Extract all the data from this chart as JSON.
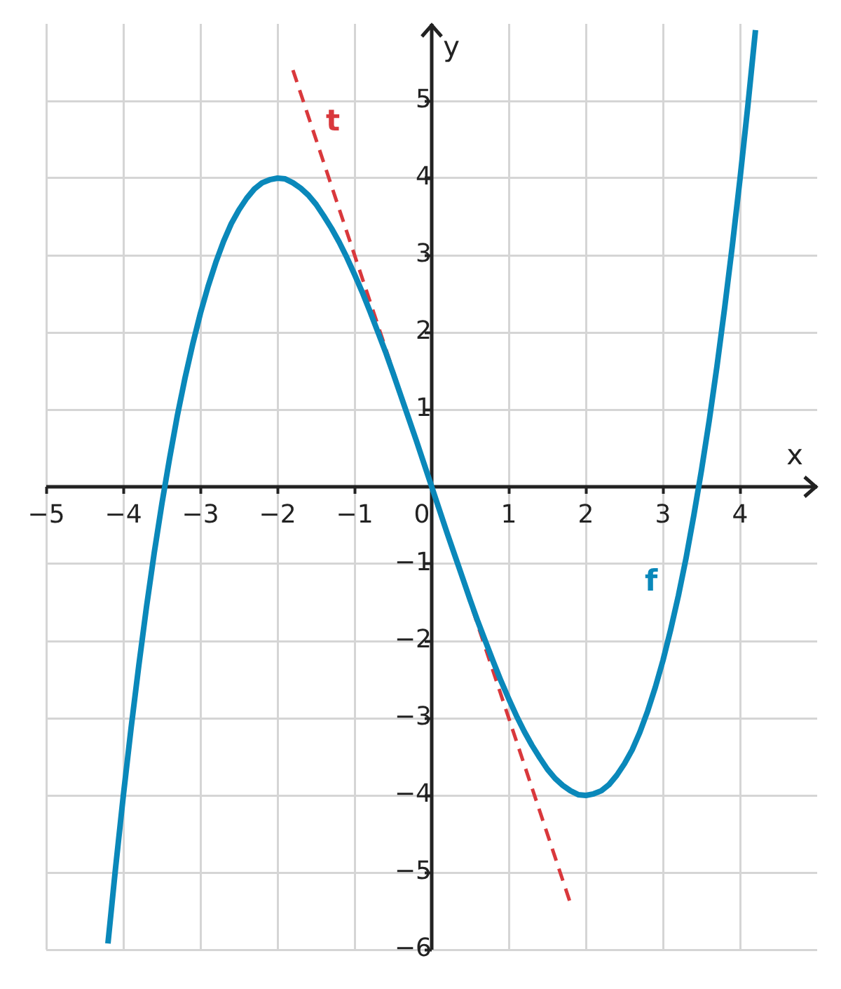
{
  "chart_data": {
    "type": "line",
    "xlabel": "x",
    "ylabel": "y",
    "xlim": [
      -5,
      5
    ],
    "ylim": [
      -6,
      6
    ],
    "xticks": [
      {
        "value": -5,
        "label": "−5"
      },
      {
        "value": -4,
        "label": "−4"
      },
      {
        "value": -3,
        "label": "−3"
      },
      {
        "value": -2,
        "label": "−2"
      },
      {
        "value": -1,
        "label": "−1"
      },
      0,
      1,
      2,
      3,
      4
    ],
    "yticks": [
      {
        "value": -6,
        "label": "−6"
      },
      {
        "value": -5,
        "label": "−5"
      },
      {
        "value": -4,
        "label": "−4"
      },
      {
        "value": -3,
        "label": "−3"
      },
      {
        "value": -2,
        "label": "−2"
      },
      {
        "value": -1,
        "label": "−1"
      },
      1,
      2,
      3,
      4,
      5
    ],
    "grid": true,
    "legend": false,
    "marker": "none",
    "series": [
      {
        "name": "f",
        "color": "#0a88ba",
        "line_style": "solid",
        "x": [
          -4.2,
          -4.1,
          -4,
          -3.9,
          -3.8,
          -3.7,
          -3.6,
          -3.5,
          -3.4,
          -3.3,
          -3.2,
          -3.1,
          -3,
          -2.9,
          -2.8,
          -2.7,
          -2.6,
          -2.5,
          -2.4,
          -2.3,
          -2.2,
          -2.1,
          -2,
          -1.9,
          -1.8,
          -1.7,
          -1.6,
          -1.5,
          -1.4,
          -1.3,
          -1.2,
          -1.1,
          -1,
          -0.9,
          -0.8,
          -0.7,
          -0.6,
          -0.5,
          -0.4,
          -0.3,
          -0.2,
          -0.1,
          0,
          0.1,
          0.2,
          0.3,
          0.4,
          0.5,
          0.6,
          0.7,
          0.8,
          0.9,
          1,
          1.1,
          1.2,
          1.3,
          1.4,
          1.5,
          1.6,
          1.7,
          1.8,
          1.9,
          2,
          2.1,
          2.2,
          2.3,
          2.4,
          2.5,
          2.6,
          2.7,
          2.8,
          2.9,
          3,
          3.1,
          3.2,
          3.3,
          3.4,
          3.5,
          3.6,
          3.7,
          3.8,
          3.9,
          4,
          4.1,
          4.2
        ],
        "values": [
          -5.92,
          -4.93,
          -4,
          -3.13,
          -2.32,
          -1.56,
          -0.86,
          -0.22,
          0.37,
          0.92,
          1.41,
          1.85,
          2.25,
          2.6,
          2.91,
          3.18,
          3.41,
          3.59,
          3.74,
          3.86,
          3.94,
          3.98,
          4,
          3.99,
          3.94,
          3.87,
          3.78,
          3.66,
          3.51,
          3.35,
          3.17,
          2.97,
          2.75,
          2.52,
          2.27,
          2.01,
          1.75,
          1.47,
          1.18,
          0.89,
          0.6,
          0.3,
          0,
          -0.3,
          -0.6,
          -0.89,
          -1.18,
          -1.47,
          -1.75,
          -2.01,
          -2.27,
          -2.52,
          -2.75,
          -2.97,
          -3.17,
          -3.35,
          -3.51,
          -3.66,
          -3.78,
          -3.87,
          -3.94,
          -3.99,
          -4,
          -3.98,
          -3.94,
          -3.86,
          -3.74,
          -3.59,
          -3.41,
          -3.18,
          -2.91,
          -2.6,
          -2.25,
          -1.85,
          -1.41,
          -0.92,
          -0.37,
          0.22,
          0.86,
          1.56,
          2.32,
          3.13,
          4,
          4.93,
          5.92
        ]
      },
      {
        "name": "t",
        "color": "#d9383c",
        "line_style": "dashed",
        "x": [
          -1.8,
          0,
          1.8
        ],
        "values": [
          5.4,
          0,
          -5.4
        ]
      }
    ]
  }
}
